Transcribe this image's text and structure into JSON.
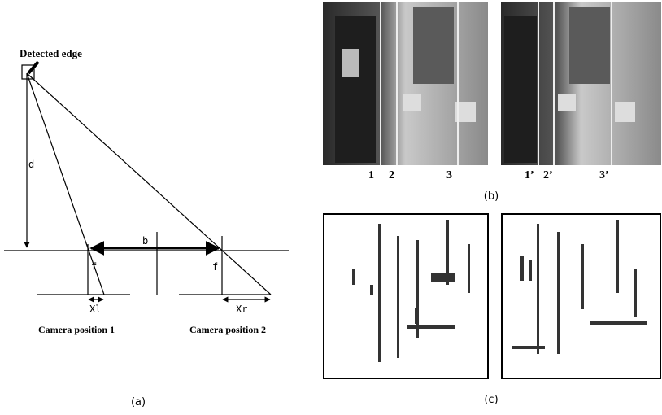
{
  "diagram": {
    "label": "Detected edge",
    "d": "d",
    "b": "b",
    "f_left": "f",
    "f_right": "f",
    "xl": "Xl",
    "xr": "Xr",
    "camera_1": "Camera position 1",
    "camera_2": "Camera position 2",
    "caption": "(a)"
  },
  "photos": {
    "left_marks": [
      "1",
      "2",
      "3"
    ],
    "right_marks": [
      "1’",
      "2’",
      "3’"
    ],
    "caption": "(b)"
  },
  "edges": {
    "caption": "(c)"
  }
}
